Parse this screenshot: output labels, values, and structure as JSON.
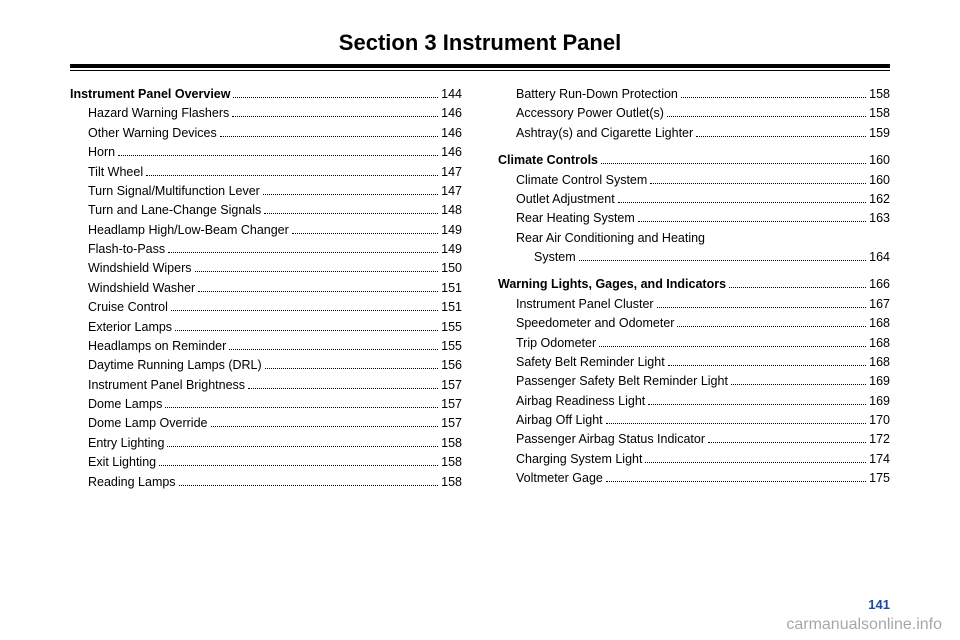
{
  "title": "Section 3    Instrument Panel",
  "page_number": "141",
  "watermark": "carmanualsonline.info",
  "left_column": [
    {
      "label": "Instrument Panel Overview",
      "page": "144",
      "level": "heading"
    },
    {
      "label": "Hazard Warning Flashers",
      "page": "146",
      "level": "sub"
    },
    {
      "label": "Other Warning Devices",
      "page": "146",
      "level": "sub"
    },
    {
      "label": "Horn",
      "page": "146",
      "level": "sub"
    },
    {
      "label": "Tilt Wheel",
      "page": "147",
      "level": "sub"
    },
    {
      "label": "Turn Signal/Multifunction Lever",
      "page": "147",
      "level": "sub"
    },
    {
      "label": "Turn and Lane-Change Signals",
      "page": "148",
      "level": "sub"
    },
    {
      "label": "Headlamp High/Low-Beam Changer",
      "page": "149",
      "level": "sub"
    },
    {
      "label": "Flash-to-Pass",
      "page": "149",
      "level": "sub"
    },
    {
      "label": "Windshield Wipers",
      "page": "150",
      "level": "sub"
    },
    {
      "label": "Windshield Washer",
      "page": "151",
      "level": "sub"
    },
    {
      "label": "Cruise Control",
      "page": "151",
      "level": "sub"
    },
    {
      "label": "Exterior Lamps",
      "page": "155",
      "level": "sub"
    },
    {
      "label": "Headlamps on Reminder",
      "page": "155",
      "level": "sub"
    },
    {
      "label": "Daytime Running Lamps (DRL)",
      "page": "156",
      "level": "sub"
    },
    {
      "label": "Instrument Panel Brightness",
      "page": "157",
      "level": "sub"
    },
    {
      "label": "Dome Lamps",
      "page": "157",
      "level": "sub"
    },
    {
      "label": "Dome Lamp Override",
      "page": "157",
      "level": "sub"
    },
    {
      "label": "Entry Lighting",
      "page": "158",
      "level": "sub"
    },
    {
      "label": "Exit Lighting",
      "page": "158",
      "level": "sub"
    },
    {
      "label": "Reading Lamps",
      "page": "158",
      "level": "sub"
    }
  ],
  "right_column": [
    {
      "label": "Battery Run-Down Protection",
      "page": "158",
      "level": "sub"
    },
    {
      "label": "Accessory Power Outlet(s)",
      "page": "158",
      "level": "sub"
    },
    {
      "label": "Ashtray(s) and Cigarette Lighter",
      "page": "159",
      "level": "sub"
    },
    {
      "label": "Climate Controls",
      "page": "160",
      "level": "heading",
      "spaceBefore": true
    },
    {
      "label": "Climate Control System",
      "page": "160",
      "level": "sub"
    },
    {
      "label": "Outlet Adjustment",
      "page": "162",
      "level": "sub"
    },
    {
      "label": "Rear Heating System",
      "page": "163",
      "level": "sub"
    },
    {
      "label": "Rear Air Conditioning and Heating",
      "page": "",
      "level": "sub",
      "noDots": true
    },
    {
      "label": "System",
      "page": "164",
      "level": "sub2"
    },
    {
      "label": "Warning Lights, Gages, and Indicators",
      "page": "166",
      "level": "heading",
      "spaceBefore": true
    },
    {
      "label": "Instrument Panel Cluster",
      "page": "167",
      "level": "sub"
    },
    {
      "label": "Speedometer and Odometer",
      "page": "168",
      "level": "sub"
    },
    {
      "label": "Trip Odometer",
      "page": "168",
      "level": "sub"
    },
    {
      "label": "Safety Belt Reminder Light",
      "page": "168",
      "level": "sub"
    },
    {
      "label": "Passenger Safety Belt Reminder Light",
      "page": "169",
      "level": "sub"
    },
    {
      "label": "Airbag Readiness Light",
      "page": "169",
      "level": "sub"
    },
    {
      "label": "Airbag Off Light",
      "page": "170",
      "level": "sub"
    },
    {
      "label": "Passenger Airbag Status Indicator",
      "page": "172",
      "level": "sub"
    },
    {
      "label": "Charging System Light",
      "page": "174",
      "level": "sub"
    },
    {
      "label": "Voltmeter Gage",
      "page": "175",
      "level": "sub"
    }
  ]
}
